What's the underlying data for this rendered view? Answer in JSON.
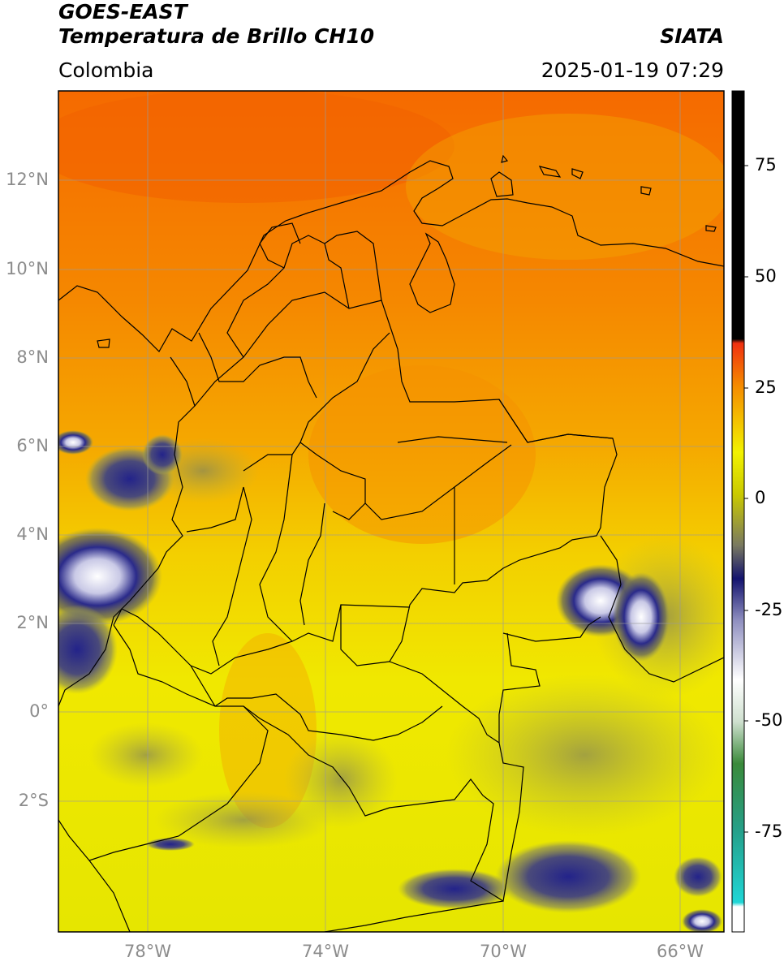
{
  "header": {
    "satellite": "GOES-EAST",
    "product": "Temperatura de Brillo CH10",
    "region": "Colombia",
    "organization": "SIATA",
    "timestamp": "2025-01-19 07:29"
  },
  "map": {
    "lat_ticks": [
      "12°N",
      "10°N",
      "8°N",
      "6°N",
      "4°N",
      "2°N",
      "0°",
      "2°S"
    ],
    "lon_ticks": [
      "78°W",
      "74°W",
      "70°W",
      "66°W"
    ],
    "extent": {
      "lon_min": -79.5,
      "lon_max": -64.5,
      "lat_min": -4.5,
      "lat_max": 14.0
    }
  },
  "colorbar": {
    "ticks": [
      "75",
      "50",
      "25",
      "0",
      "-25",
      "-50",
      "-75"
    ],
    "range": [
      -95,
      90
    ],
    "colors": {
      "black": "#000000",
      "red": "#e8201a",
      "orange": "#f58a00",
      "yellow": "#f2f200",
      "olive": "#8a8a45",
      "navy": "#13136e",
      "white": "#ffffff",
      "green": "#3a8a3a",
      "cyan": "#1fd6d6"
    }
  }
}
